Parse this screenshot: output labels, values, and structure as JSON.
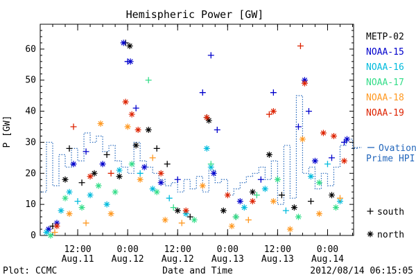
{
  "chart_data": {
    "type": "scatter",
    "title": "Hemispheric Power [GW]",
    "ylabel": "P [GW]",
    "xlabel": "Date and Time",
    "ylim": [
      0,
      68
    ],
    "y_ticks": [
      0,
      10,
      20,
      30,
      40,
      50,
      60
    ],
    "xlim": [
      "2012-08-11 03:00",
      "2012-08-14 06:15"
    ],
    "x_ticks": [
      {
        "time": "2012-08-11 12:00",
        "line1": "12:00",
        "line2": "Aug.11"
      },
      {
        "time": "2012-08-12 00:00",
        "line1": "0:00",
        "line2": "Aug.12"
      },
      {
        "time": "2012-08-12 12:00",
        "line1": "12:00",
        "line2": "Aug.12"
      },
      {
        "time": "2012-08-13 00:00",
        "line1": "0:00",
        "line2": "Aug.13"
      },
      {
        "time": "2012-08-13 12:00",
        "line1": "12:00",
        "line2": "Aug.13"
      },
      {
        "time": "2012-08-14 00:00",
        "line1": "0:00",
        "line2": "Aug.14"
      }
    ],
    "grid": false,
    "legend_position": "right",
    "series": [
      {
        "name": "METP-02",
        "color": "#000000",
        "points": [
          {
            "t": "2012-08-11 06:00",
            "y": 3,
            "m": "+"
          },
          {
            "t": "2012-08-11 09:00",
            "y": 18,
            "m": "*"
          },
          {
            "t": "2012-08-11 10:00",
            "y": 28,
            "m": "+"
          },
          {
            "t": "2012-08-11 13:00",
            "y": 17,
            "m": "+"
          },
          {
            "t": "2012-08-11 16:00",
            "y": 20,
            "m": "*"
          },
          {
            "t": "2012-08-11 19:00",
            "y": 26,
            "m": "+"
          },
          {
            "t": "2012-08-11 22:00",
            "y": 19,
            "m": "*"
          },
          {
            "t": "2012-08-11 23:30",
            "y": 62,
            "m": "+"
          },
          {
            "t": "2012-08-12 00:30",
            "y": 61,
            "m": "*"
          },
          {
            "t": "2012-08-12 02:00",
            "y": 29,
            "m": "*"
          },
          {
            "t": "2012-08-12 05:00",
            "y": 34,
            "m": "*"
          },
          {
            "t": "2012-08-12 07:00",
            "y": 28,
            "m": "+"
          },
          {
            "t": "2012-08-12 09:30",
            "y": 23,
            "m": "+"
          },
          {
            "t": "2012-08-12 12:00",
            "y": 8,
            "m": "*"
          },
          {
            "t": "2012-08-12 15:00",
            "y": 6,
            "m": "+"
          },
          {
            "t": "2012-08-12 19:00",
            "y": 38,
            "m": "+"
          },
          {
            "t": "2012-08-12 19:30",
            "y": 37,
            "m": "*"
          },
          {
            "t": "2012-08-12 23:00",
            "y": 8,
            "m": "*"
          },
          {
            "t": "2012-08-13 02:00",
            "y": 6,
            "m": "+"
          },
          {
            "t": "2012-08-13 06:00",
            "y": 14,
            "m": "*"
          },
          {
            "t": "2012-08-13 10:00",
            "y": 26,
            "m": "*"
          },
          {
            "t": "2012-08-13 13:00",
            "y": 13,
            "m": "+"
          },
          {
            "t": "2012-08-13 16:00",
            "y": 9,
            "m": "*"
          },
          {
            "t": "2012-08-13 20:00",
            "y": 11,
            "m": "+"
          },
          {
            "t": "2012-08-14 01:00",
            "y": 13,
            "m": "*"
          }
        ]
      },
      {
        "name": "NOAA-15",
        "color": "#0000cc",
        "points": [
          {
            "t": "2012-08-11 05:00",
            "y": 2,
            "m": "*"
          },
          {
            "t": "2012-08-11 07:00",
            "y": 4,
            "m": "*"
          },
          {
            "t": "2012-08-11 11:00",
            "y": 23,
            "m": "*"
          },
          {
            "t": "2012-08-11 14:00",
            "y": 27,
            "m": "+"
          },
          {
            "t": "2012-08-11 18:00",
            "y": 23,
            "m": "*"
          },
          {
            "t": "2012-08-11 23:00",
            "y": 62,
            "m": "*"
          },
          {
            "t": "2012-08-12 00:00",
            "y": 56,
            "m": "+"
          },
          {
            "t": "2012-08-12 00:40",
            "y": 56,
            "m": "*"
          },
          {
            "t": "2012-08-12 02:00",
            "y": 41,
            "m": "+"
          },
          {
            "t": "2012-08-12 04:00",
            "y": 22,
            "m": "*"
          },
          {
            "t": "2012-08-12 08:00",
            "y": 17,
            "m": "*"
          },
          {
            "t": "2012-08-12 12:00",
            "y": 18,
            "m": "+"
          },
          {
            "t": "2012-08-12 18:00",
            "y": 46,
            "m": "+"
          },
          {
            "t": "2012-08-12 20:00",
            "y": 58,
            "m": "+"
          },
          {
            "t": "2012-08-12 20:40",
            "y": 20,
            "m": "*"
          },
          {
            "t": "2012-08-12 21:30",
            "y": 34,
            "m": "+"
          },
          {
            "t": "2012-08-13 03:00",
            "y": 11,
            "m": "*"
          },
          {
            "t": "2012-08-13 08:00",
            "y": 18,
            "m": "+"
          },
          {
            "t": "2012-08-13 11:00",
            "y": 46,
            "m": "+"
          },
          {
            "t": "2012-08-13 17:00",
            "y": 35,
            "m": "+"
          },
          {
            "t": "2012-08-13 18:30",
            "y": 50,
            "m": "*"
          },
          {
            "t": "2012-08-13 19:30",
            "y": 40,
            "m": "+"
          },
          {
            "t": "2012-08-13 21:00",
            "y": 24,
            "m": "*"
          },
          {
            "t": "2012-08-14 01:00",
            "y": 25,
            "m": "+"
          },
          {
            "t": "2012-08-14 04:00",
            "y": 30,
            "m": "+"
          },
          {
            "t": "2012-08-14 04:40",
            "y": 31,
            "m": "*"
          }
        ]
      },
      {
        "name": "NOAA-16",
        "color": "#00bbdd",
        "points": [
          {
            "t": "2012-08-11 04:30",
            "y": 1,
            "m": "*"
          },
          {
            "t": "2012-08-11 08:00",
            "y": 8,
            "m": "*"
          },
          {
            "t": "2012-08-11 10:00",
            "y": 14,
            "m": "*"
          },
          {
            "t": "2012-08-11 12:00",
            "y": 11,
            "m": "+"
          },
          {
            "t": "2012-08-11 15:00",
            "y": 13,
            "m": "*"
          },
          {
            "t": "2012-08-11 19:00",
            "y": 10,
            "m": "*"
          },
          {
            "t": "2012-08-11 22:00",
            "y": 21,
            "m": "*"
          },
          {
            "t": "2012-08-12 03:00",
            "y": 20,
            "m": "+"
          },
          {
            "t": "2012-08-12 06:00",
            "y": 15,
            "m": "*"
          },
          {
            "t": "2012-08-12 10:00",
            "y": 12,
            "m": "+"
          },
          {
            "t": "2012-08-12 14:00",
            "y": 7,
            "m": "*"
          },
          {
            "t": "2012-08-12 19:00",
            "y": 28,
            "m": "*"
          },
          {
            "t": "2012-08-12 20:00",
            "y": 22,
            "m": "*"
          },
          {
            "t": "2012-08-13 04:00",
            "y": 9,
            "m": "*"
          },
          {
            "t": "2012-08-13 09:00",
            "y": 15,
            "m": "*"
          },
          {
            "t": "2012-08-13 14:00",
            "y": 8,
            "m": "+"
          },
          {
            "t": "2012-08-13 20:00",
            "y": 19,
            "m": "*"
          },
          {
            "t": "2012-08-14 00:00",
            "y": 23,
            "m": "+"
          },
          {
            "t": "2012-08-14 03:00",
            "y": 11,
            "m": "*"
          }
        ]
      },
      {
        "name": "NOAA-17",
        "color": "#33dd88",
        "points": [
          {
            "t": "2012-08-11 05:30",
            "y": 0,
            "m": "*"
          },
          {
            "t": "2012-08-11 09:00",
            "y": 12,
            "m": "*"
          },
          {
            "t": "2012-08-11 13:00",
            "y": 9,
            "m": "*"
          },
          {
            "t": "2012-08-11 17:00",
            "y": 16,
            "m": "*"
          },
          {
            "t": "2012-08-11 21:00",
            "y": 14,
            "m": "*"
          },
          {
            "t": "2012-08-12 01:00",
            "y": 23,
            "m": "*"
          },
          {
            "t": "2012-08-12 05:00",
            "y": 50,
            "m": "+"
          },
          {
            "t": "2012-08-12 07:00",
            "y": 14,
            "m": "*"
          },
          {
            "t": "2012-08-12 11:00",
            "y": 9,
            "m": "+"
          },
          {
            "t": "2012-08-12 16:00",
            "y": 5,
            "m": "*"
          },
          {
            "t": "2012-08-12 20:00",
            "y": 23,
            "m": "+"
          },
          {
            "t": "2012-08-13 02:00",
            "y": 6,
            "m": "*"
          },
          {
            "t": "2012-08-13 07:00",
            "y": 13,
            "m": "+"
          },
          {
            "t": "2012-08-13 12:00",
            "y": 18,
            "m": "*"
          },
          {
            "t": "2012-08-13 17:00",
            "y": 6,
            "m": "*"
          },
          {
            "t": "2012-08-13 22:00",
            "y": 17,
            "m": "*"
          },
          {
            "t": "2012-08-14 02:00",
            "y": 9,
            "m": "*"
          }
        ]
      },
      {
        "name": "NOAA-18",
        "color": "#ff9922",
        "points": [
          {
            "t": "2012-08-11 06:30",
            "y": 1,
            "m": "+"
          },
          {
            "t": "2012-08-11 10:00",
            "y": 7,
            "m": "*"
          },
          {
            "t": "2012-08-11 14:00",
            "y": 4,
            "m": "+"
          },
          {
            "t": "2012-08-11 17:30",
            "y": 36,
            "m": "*"
          },
          {
            "t": "2012-08-11 20:00",
            "y": 7,
            "m": "*"
          },
          {
            "t": "2012-08-12 00:00",
            "y": 35,
            "m": "*"
          },
          {
            "t": "2012-08-12 03:00",
            "y": 18,
            "m": "*"
          },
          {
            "t": "2012-08-12 06:00",
            "y": 25,
            "m": "+"
          },
          {
            "t": "2012-08-12 09:00",
            "y": 5,
            "m": "*"
          },
          {
            "t": "2012-08-12 13:00",
            "y": 4,
            "m": "+"
          },
          {
            "t": "2012-08-12 18:00",
            "y": 16,
            "m": "*"
          },
          {
            "t": "2012-08-13 01:00",
            "y": 3,
            "m": "*"
          },
          {
            "t": "2012-08-13 05:00",
            "y": 5,
            "m": "+"
          },
          {
            "t": "2012-08-13 11:00",
            "y": 11,
            "m": "*"
          },
          {
            "t": "2012-08-13 15:00",
            "y": 2,
            "m": "*"
          },
          {
            "t": "2012-08-13 18:00",
            "y": 31,
            "m": "*"
          },
          {
            "t": "2012-08-13 22:00",
            "y": 7,
            "m": "*"
          },
          {
            "t": "2012-08-14 03:00",
            "y": 12,
            "m": "+"
          }
        ]
      },
      {
        "name": "NOAA-19",
        "color": "#dd2200",
        "points": [
          {
            "t": "2012-08-11 07:00",
            "y": 3,
            "m": "*"
          },
          {
            "t": "2012-08-11 11:00",
            "y": 35,
            "m": "+"
          },
          {
            "t": "2012-08-11 15:00",
            "y": 19,
            "m": "*"
          },
          {
            "t": "2012-08-11 20:00",
            "y": 20,
            "m": "+"
          },
          {
            "t": "2012-08-11 23:30",
            "y": 43,
            "m": "*"
          },
          {
            "t": "2012-08-12 01:00",
            "y": 39,
            "m": "*"
          },
          {
            "t": "2012-08-12 02:30",
            "y": 34,
            "m": "*"
          },
          {
            "t": "2012-08-12 08:00",
            "y": 20,
            "m": "*"
          },
          {
            "t": "2012-08-12 14:00",
            "y": 8,
            "m": "*"
          },
          {
            "t": "2012-08-12 19:00",
            "y": 38,
            "m": "*"
          },
          {
            "t": "2012-08-13 00:00",
            "y": 13,
            "m": "*"
          },
          {
            "t": "2012-08-13 06:00",
            "y": 11,
            "m": "*"
          },
          {
            "t": "2012-08-13 10:00",
            "y": 39,
            "m": "+"
          },
          {
            "t": "2012-08-13 11:00",
            "y": 40,
            "m": "*"
          },
          {
            "t": "2012-08-13 17:30",
            "y": 61,
            "m": "+"
          },
          {
            "t": "2012-08-13 18:30",
            "y": 49,
            "m": "*"
          },
          {
            "t": "2012-08-13 23:00",
            "y": 33,
            "m": "*"
          },
          {
            "t": "2012-08-14 01:30",
            "y": 32,
            "m": "*"
          },
          {
            "t": "2012-08-14 04:00",
            "y": 24,
            "m": "*"
          }
        ]
      },
      {
        "name": "Ovation Prime HPI",
        "color": "#2266bb",
        "style": "dotted-step",
        "points": [
          {
            "t": "2012-08-11 03:00",
            "y": 14
          },
          {
            "t": "2012-08-11 04:30",
            "y": 30
          },
          {
            "t": "2012-08-11 06:00",
            "y": 16
          },
          {
            "t": "2012-08-11 07:30",
            "y": 26
          },
          {
            "t": "2012-08-11 09:00",
            "y": 22
          },
          {
            "t": "2012-08-11 10:30",
            "y": 28
          },
          {
            "t": "2012-08-11 12:00",
            "y": 24
          },
          {
            "t": "2012-08-11 13:30",
            "y": 33
          },
          {
            "t": "2012-08-11 15:00",
            "y": 30
          },
          {
            "t": "2012-08-11 16:30",
            "y": 32
          },
          {
            "t": "2012-08-11 18:00",
            "y": 27
          },
          {
            "t": "2012-08-11 19:30",
            "y": 29
          },
          {
            "t": "2012-08-11 21:00",
            "y": 24
          },
          {
            "t": "2012-08-11 22:30",
            "y": 22
          },
          {
            "t": "2012-08-12 00:00",
            "y": 20
          },
          {
            "t": "2012-08-12 01:30",
            "y": 30
          },
          {
            "t": "2012-08-12 03:00",
            "y": 24
          },
          {
            "t": "2012-08-12 04:30",
            "y": 22
          },
          {
            "t": "2012-08-12 06:00",
            "y": 20
          },
          {
            "t": "2012-08-12 07:30",
            "y": 18
          },
          {
            "t": "2012-08-12 09:00",
            "y": 16
          },
          {
            "t": "2012-08-12 10:30",
            "y": 17
          },
          {
            "t": "2012-08-12 12:00",
            "y": 14
          },
          {
            "t": "2012-08-12 13:30",
            "y": 18
          },
          {
            "t": "2012-08-12 15:00",
            "y": 15
          },
          {
            "t": "2012-08-12 16:30",
            "y": 19
          },
          {
            "t": "2012-08-12 18:00",
            "y": 14
          },
          {
            "t": "2012-08-12 19:30",
            "y": 21
          },
          {
            "t": "2012-08-12 21:00",
            "y": 17
          },
          {
            "t": "2012-08-12 22:30",
            "y": 18
          },
          {
            "t": "2012-08-13 00:00",
            "y": 13
          },
          {
            "t": "2012-08-13 01:30",
            "y": 15
          },
          {
            "t": "2012-08-13 03:00",
            "y": 17
          },
          {
            "t": "2012-08-13 04:30",
            "y": 19
          },
          {
            "t": "2012-08-13 06:00",
            "y": 20
          },
          {
            "t": "2012-08-13 07:30",
            "y": 22
          },
          {
            "t": "2012-08-13 09:00",
            "y": 18
          },
          {
            "t": "2012-08-13 10:30",
            "y": 24
          },
          {
            "t": "2012-08-13 12:00",
            "y": 10
          },
          {
            "t": "2012-08-13 13:30",
            "y": 29
          },
          {
            "t": "2012-08-13 15:00",
            "y": 12
          },
          {
            "t": "2012-08-13 16:30",
            "y": 45
          },
          {
            "t": "2012-08-13 18:00",
            "y": 20
          },
          {
            "t": "2012-08-13 19:30",
            "y": 22
          },
          {
            "t": "2012-08-13 21:00",
            "y": 15
          },
          {
            "t": "2012-08-13 22:30",
            "y": 20
          },
          {
            "t": "2012-08-14 00:00",
            "y": 16
          },
          {
            "t": "2012-08-14 01:30",
            "y": 22
          },
          {
            "t": "2012-08-14 03:00",
            "y": 29
          },
          {
            "t": "2012-08-14 04:30",
            "y": 31
          },
          {
            "t": "2012-08-14 06:00",
            "y": 28
          }
        ]
      }
    ],
    "legend": {
      "satellites": [
        "METP-02",
        "NOAA-15",
        "NOAA-16",
        "NOAA-17",
        "NOAA-18",
        "NOAA-19"
      ],
      "ovation_line1": "Ovation",
      "ovation_line2": "Prime HPI",
      "south_label": "south",
      "north_label": "north"
    }
  },
  "footer": {
    "plot_credit": "Plot: CCMC",
    "timestamp": "2012/08/14 06:15:05"
  }
}
